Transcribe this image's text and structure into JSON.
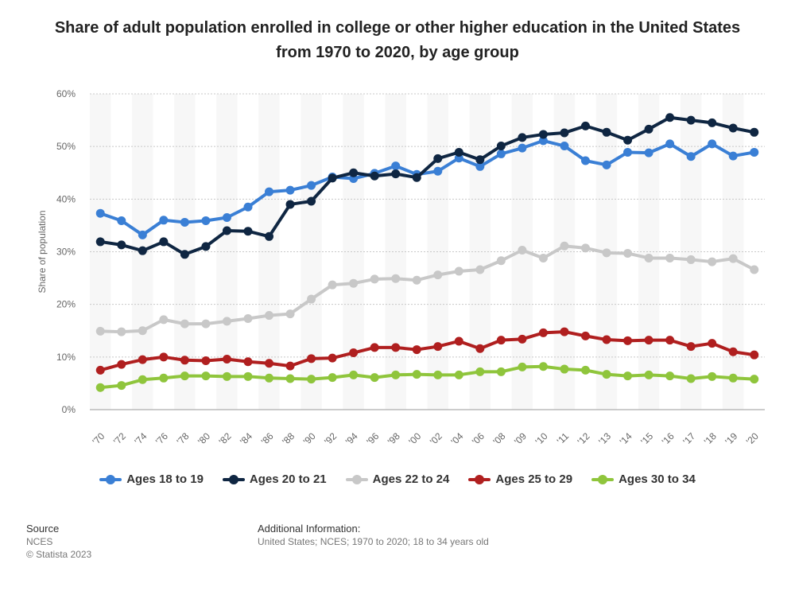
{
  "title": "Share of adult population enrolled in college or other higher education in the United States from 1970 to 2020, by age group",
  "chart_data": {
    "type": "line",
    "title": "Share of adult population enrolled in college or other higher education in the United States from 1970 to 2020, by age group",
    "ylabel": "Share of population",
    "xlabel": "",
    "ylim": [
      0,
      60
    ],
    "yticks": [
      "0%",
      "10%",
      "20%",
      "30%",
      "40%",
      "50%",
      "60%"
    ],
    "grid": "horizontal dotted",
    "legend": "bottom",
    "categories": [
      "'70",
      "'72",
      "'74",
      "'76",
      "'78",
      "'80",
      "'82",
      "'84",
      "'86",
      "'88",
      "'90",
      "'92",
      "'94",
      "'96",
      "'98",
      "'00",
      "'02",
      "'04",
      "'06",
      "'08",
      "'09",
      "'10",
      "'11",
      "'12",
      "'13",
      "'14",
      "'15",
      "'16",
      "'17",
      "'18",
      "'19",
      "'20"
    ],
    "series": [
      {
        "name": "Ages 18 to 19",
        "color": "#3a7fd5",
        "values": [
          37.3,
          35.9,
          33.2,
          36.0,
          35.6,
          35.9,
          36.5,
          38.5,
          41.4,
          41.7,
          42.6,
          44.2,
          43.9,
          44.9,
          46.3,
          44.7,
          45.3,
          47.8,
          46.2,
          48.6,
          49.7,
          51.1,
          50.1,
          47.3,
          46.5,
          48.9,
          48.8,
          50.5,
          48.1,
          50.5,
          48.2,
          48.9
        ]
      },
      {
        "name": "Ages 20 to 21",
        "color": "#0f2642",
        "values": [
          31.9,
          31.3,
          30.2,
          31.9,
          29.5,
          31.0,
          34.0,
          33.9,
          32.9,
          39.0,
          39.6,
          44.0,
          45.0,
          44.4,
          44.8,
          44.1,
          47.7,
          48.9,
          47.5,
          50.1,
          51.7,
          52.3,
          52.6,
          53.9,
          52.7,
          51.2,
          53.3,
          55.5,
          55.0,
          54.5,
          53.5,
          52.7
        ]
      },
      {
        "name": "Ages 22 to 24",
        "color": "#c8c8c8",
        "values": [
          14.9,
          14.8,
          15.0,
          17.1,
          16.3,
          16.3,
          16.8,
          17.3,
          17.9,
          18.2,
          21.0,
          23.7,
          24.0,
          24.8,
          24.9,
          24.6,
          25.6,
          26.3,
          26.6,
          28.3,
          30.3,
          28.8,
          31.1,
          30.7,
          29.8,
          29.7,
          28.8,
          28.8,
          28.5,
          28.1,
          28.7,
          26.6
        ]
      },
      {
        "name": "Ages 25 to 29",
        "color": "#b01f1f",
        "values": [
          7.5,
          8.6,
          9.5,
          10.0,
          9.4,
          9.3,
          9.6,
          9.1,
          8.8,
          8.3,
          9.7,
          9.8,
          10.8,
          11.8,
          11.8,
          11.4,
          12.0,
          13.0,
          11.6,
          13.2,
          13.4,
          14.6,
          14.8,
          14.0,
          13.3,
          13.1,
          13.2,
          13.2,
          12.0,
          12.6,
          11.0,
          10.4
        ]
      },
      {
        "name": "Ages 30 to 34",
        "color": "#8fc53c",
        "values": [
          4.2,
          4.6,
          5.7,
          6.0,
          6.4,
          6.4,
          6.3,
          6.3,
          6.0,
          5.9,
          5.8,
          6.1,
          6.6,
          6.1,
          6.6,
          6.7,
          6.6,
          6.6,
          7.2,
          7.2,
          8.1,
          8.2,
          7.7,
          7.5,
          6.7,
          6.4,
          6.6,
          6.4,
          5.9,
          6.3,
          6.0,
          5.8
        ]
      }
    ]
  },
  "legend": [
    "Ages 18 to 19",
    "Ages 20 to 21",
    "Ages 22 to 24",
    "Ages 25 to 29",
    "Ages 30 to 34"
  ],
  "footer": {
    "source_heading": "Source",
    "source": "NCES",
    "copyright": "© Statista 2023",
    "additional_heading": "Additional Information:",
    "additional": "United States; NCES; 1970 to 2020; 18 to 34 years old"
  }
}
